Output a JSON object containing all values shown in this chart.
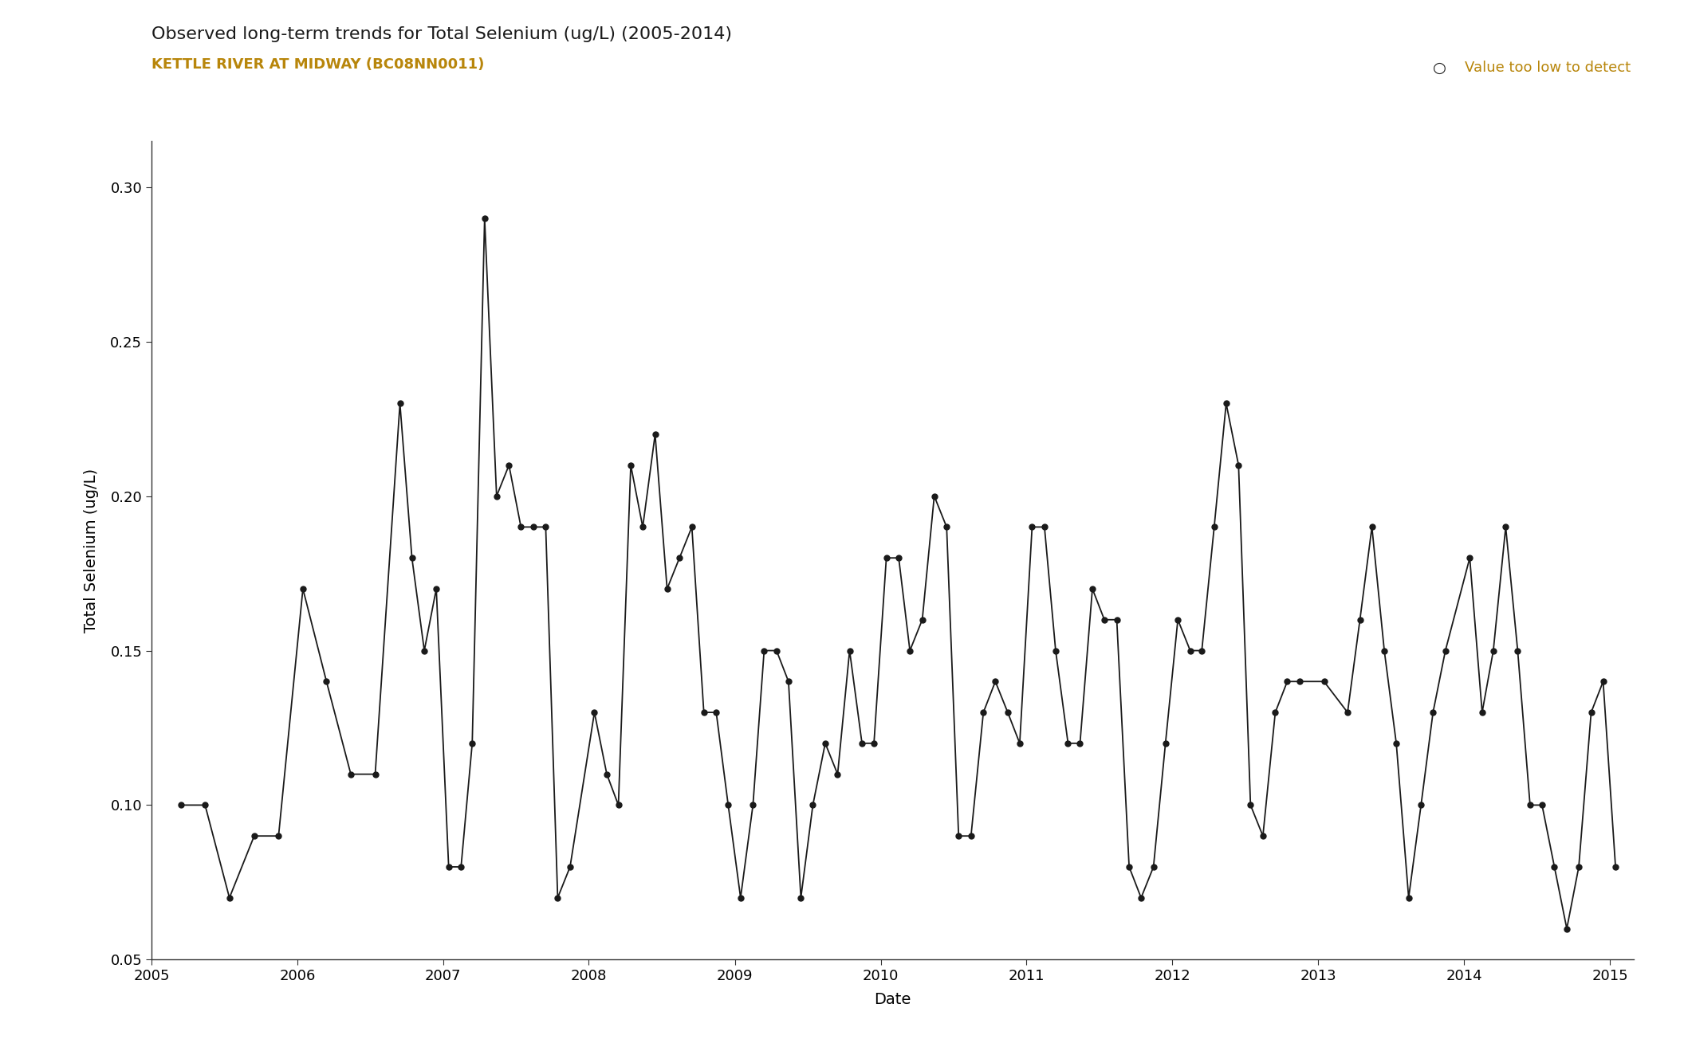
{
  "title": "Observed long-term trends for Total Selenium (ug/L) (2005-2014)",
  "subtitle": "KETTLE RIVER AT MIDWAY (BC08NN0011)",
  "subtitle_color": "#b8860b",
  "legend_text_color": "#b8860b",
  "ylabel": "Total Selenium (ug/L)",
  "xlabel": "Date",
  "legend_label": "Value too low to detect",
  "background_color": "#ffffff",
  "ylim": [
    0.05,
    0.315
  ],
  "yticks": [
    0.05,
    0.1,
    0.15,
    0.2,
    0.25,
    0.3
  ],
  "data_points": [
    [
      "2005-03-15",
      0.1
    ],
    [
      "2005-05-15",
      0.1
    ],
    [
      "2005-07-15",
      0.07
    ],
    [
      "2005-09-15",
      0.09
    ],
    [
      "2005-11-15",
      0.09
    ],
    [
      "2006-01-15",
      0.17
    ],
    [
      "2006-03-15",
      0.14
    ],
    [
      "2006-05-15",
      0.11
    ],
    [
      "2006-07-15",
      0.11
    ],
    [
      "2006-09-15",
      0.23
    ],
    [
      "2006-10-15",
      0.18
    ],
    [
      "2006-11-15",
      0.15
    ],
    [
      "2006-12-15",
      0.17
    ],
    [
      "2007-01-15",
      0.08
    ],
    [
      "2007-02-15",
      0.08
    ],
    [
      "2007-03-15",
      0.12
    ],
    [
      "2007-04-15",
      0.29
    ],
    [
      "2007-05-15",
      0.2
    ],
    [
      "2007-06-15",
      0.21
    ],
    [
      "2007-07-15",
      0.19
    ],
    [
      "2007-08-15",
      0.19
    ],
    [
      "2007-09-15",
      0.19
    ],
    [
      "2007-10-15",
      0.07
    ],
    [
      "2007-11-15",
      0.08
    ],
    [
      "2008-01-15",
      0.13
    ],
    [
      "2008-02-15",
      0.11
    ],
    [
      "2008-03-15",
      0.1
    ],
    [
      "2008-04-15",
      0.21
    ],
    [
      "2008-05-15",
      0.19
    ],
    [
      "2008-06-15",
      0.22
    ],
    [
      "2008-07-15",
      0.17
    ],
    [
      "2008-08-15",
      0.18
    ],
    [
      "2008-09-15",
      0.19
    ],
    [
      "2008-10-15",
      0.13
    ],
    [
      "2008-11-15",
      0.13
    ],
    [
      "2008-12-15",
      0.1
    ],
    [
      "2009-01-15",
      0.07
    ],
    [
      "2009-02-15",
      0.1
    ],
    [
      "2009-03-15",
      0.15
    ],
    [
      "2009-04-15",
      0.15
    ],
    [
      "2009-05-15",
      0.14
    ],
    [
      "2009-06-15",
      0.07
    ],
    [
      "2009-07-15",
      0.1
    ],
    [
      "2009-08-15",
      0.12
    ],
    [
      "2009-09-15",
      0.11
    ],
    [
      "2009-10-15",
      0.15
    ],
    [
      "2009-11-15",
      0.12
    ],
    [
      "2009-12-15",
      0.12
    ],
    [
      "2010-01-15",
      0.18
    ],
    [
      "2010-02-15",
      0.18
    ],
    [
      "2010-03-15",
      0.15
    ],
    [
      "2010-04-15",
      0.16
    ],
    [
      "2010-05-15",
      0.2
    ],
    [
      "2010-06-15",
      0.19
    ],
    [
      "2010-07-15",
      0.09
    ],
    [
      "2010-08-15",
      0.09
    ],
    [
      "2010-09-15",
      0.13
    ],
    [
      "2010-10-15",
      0.14
    ],
    [
      "2010-11-15",
      0.13
    ],
    [
      "2010-12-15",
      0.12
    ],
    [
      "2011-01-15",
      0.19
    ],
    [
      "2011-02-15",
      0.19
    ],
    [
      "2011-03-15",
      0.15
    ],
    [
      "2011-04-15",
      0.12
    ],
    [
      "2011-05-15",
      0.12
    ],
    [
      "2011-06-15",
      0.17
    ],
    [
      "2011-07-15",
      0.16
    ],
    [
      "2011-08-15",
      0.16
    ],
    [
      "2011-09-15",
      0.08
    ],
    [
      "2011-10-15",
      0.07
    ],
    [
      "2011-11-15",
      0.08
    ],
    [
      "2011-12-15",
      0.12
    ],
    [
      "2012-01-15",
      0.16
    ],
    [
      "2012-02-15",
      0.15
    ],
    [
      "2012-03-15",
      0.15
    ],
    [
      "2012-04-15",
      0.19
    ],
    [
      "2012-05-15",
      0.23
    ],
    [
      "2012-06-15",
      0.21
    ],
    [
      "2012-07-15",
      0.1
    ],
    [
      "2012-08-15",
      0.09
    ],
    [
      "2012-09-15",
      0.13
    ],
    [
      "2012-10-15",
      0.14
    ],
    [
      "2012-11-15",
      0.14
    ],
    [
      "2013-01-15",
      0.14
    ],
    [
      "2013-03-15",
      0.13
    ],
    [
      "2013-04-15",
      0.16
    ],
    [
      "2013-05-15",
      0.19
    ],
    [
      "2013-06-15",
      0.15
    ],
    [
      "2013-07-15",
      0.12
    ],
    [
      "2013-08-15",
      0.07
    ],
    [
      "2013-09-15",
      0.1
    ],
    [
      "2013-10-15",
      0.13
    ],
    [
      "2013-11-15",
      0.15
    ],
    [
      "2014-01-15",
      0.18
    ],
    [
      "2014-02-15",
      0.13
    ],
    [
      "2014-03-15",
      0.15
    ],
    [
      "2014-04-15",
      0.19
    ],
    [
      "2014-05-15",
      0.15
    ],
    [
      "2014-06-15",
      0.1
    ],
    [
      "2014-07-15",
      0.1
    ],
    [
      "2014-08-15",
      0.08
    ],
    [
      "2014-09-15",
      0.06
    ],
    [
      "2014-10-15",
      0.08
    ],
    [
      "2014-11-15",
      0.13
    ],
    [
      "2014-12-15",
      0.14
    ],
    [
      "2015-01-15",
      0.08
    ]
  ],
  "line_color": "#1a1a1a",
  "marker_color": "#1a1a1a",
  "marker_size": 5,
  "line_width": 1.3,
  "title_fontsize": 16,
  "subtitle_fontsize": 13,
  "ylabel_fontsize": 14,
  "xlabel_fontsize": 14,
  "tick_fontsize": 13,
  "legend_fontsize": 13
}
